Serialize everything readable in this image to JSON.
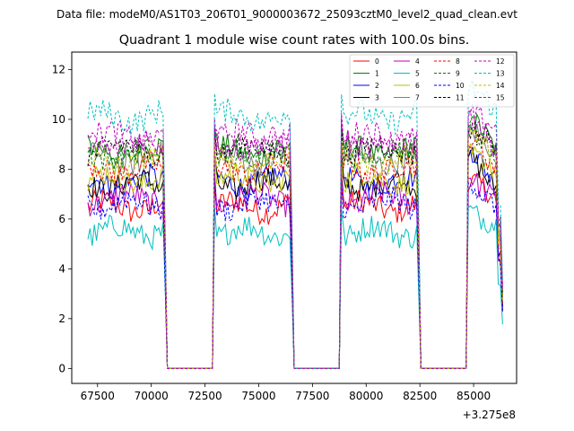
{
  "header": {
    "suptitle": "Data file: modeM0/AS1T03_206T01_9000003672_25093cztM0_level2_quad_clean.evt"
  },
  "chart_data": {
    "type": "line",
    "title": "Quadrant 1 module wise count rates with 100.0s bins.",
    "xlabel": "",
    "ylabel": "",
    "x_offset_label": "+3.275e8",
    "xlim": [
      66300,
      87000
    ],
    "ylim": [
      -0.6,
      12.7
    ],
    "x_ticks": [
      67500,
      70000,
      72500,
      75000,
      77500,
      80000,
      82500,
      85000
    ],
    "x_tick_labels": [
      "67500",
      "70000",
      "72500",
      "75000",
      "77500",
      "80000",
      "82500",
      "85000"
    ],
    "y_ticks": [
      0,
      2,
      4,
      6,
      8,
      10,
      12
    ],
    "y_tick_labels": [
      "0",
      "2",
      "4",
      "6",
      "8",
      "10",
      "12"
    ],
    "bin_size_s": 100,
    "x_start": 67050,
    "good_time_intervals": [
      [
        67050,
        70650
      ],
      [
        72950,
        76550
      ],
      [
        78850,
        82450
      ],
      [
        84750,
        86350
      ]
    ],
    "gap_value": 0,
    "legend_position": "top-right",
    "series": [
      {
        "name": "0",
        "color": "#ff0000",
        "style": "solid",
        "level": 6.5
      },
      {
        "name": "1",
        "color": "#008000",
        "style": "solid",
        "level": 8.7
      },
      {
        "name": "2",
        "color": "#0000ff",
        "style": "solid",
        "level": 7.5
      },
      {
        "name": "3",
        "color": "#000000",
        "style": "solid",
        "level": 7.4
      },
      {
        "name": "4",
        "color": "#bf00bf",
        "style": "solid",
        "level": 6.8
      },
      {
        "name": "5",
        "color": "#00bfbf",
        "style": "solid",
        "level": 5.5
      },
      {
        "name": "6",
        "color": "#bfbf00",
        "style": "solid",
        "level": 7.6
      },
      {
        "name": "7",
        "color": "#808080",
        "style": "solid",
        "level": 8.4
      },
      {
        "name": "8",
        "color": "#ff0000",
        "style": "dashed",
        "level": 8.0
      },
      {
        "name": "9",
        "color": "#008000",
        "style": "dashed",
        "level": 8.6
      },
      {
        "name": "10",
        "color": "#0000ff",
        "style": "dashed",
        "level": 6.6
      },
      {
        "name": "11",
        "color": "#000000",
        "style": "dashed",
        "level": 8.8
      },
      {
        "name": "12",
        "color": "#bf00bf",
        "style": "dashed",
        "level": 9.3
      },
      {
        "name": "13",
        "color": "#00bfbf",
        "style": "dashed",
        "level": 10.1
      },
      {
        "name": "14",
        "color": "#bfbf00",
        "style": "dashed",
        "level": 8.3
      },
      {
        "name": "15",
        "color": "#bf00bf",
        "style": "dashed",
        "level": 9.0
      }
    ]
  }
}
